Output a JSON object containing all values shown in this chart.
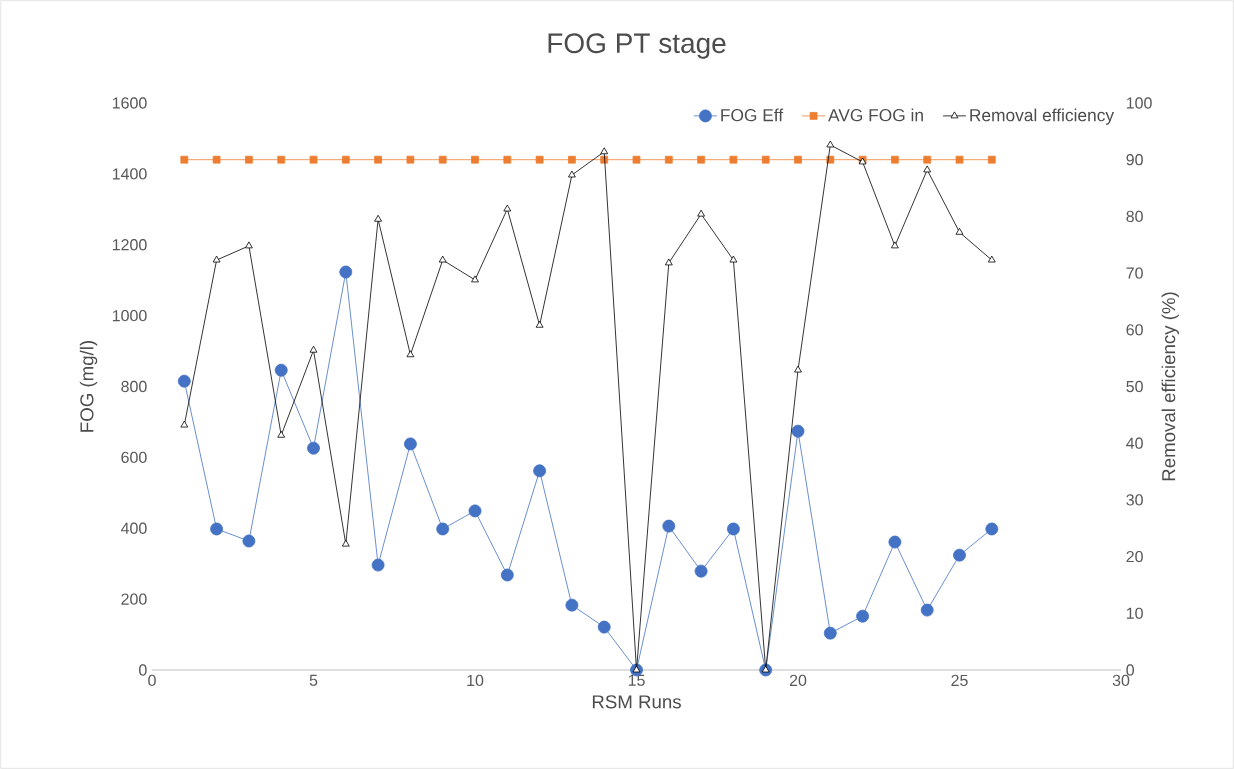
{
  "chart_data": {
    "type": "line",
    "title": "FOG PT stage",
    "xlabel": "RSM Runs",
    "ylabel": "FOG (mg/l)",
    "y2label": "Removal efficiency (%)",
    "x": [
      1,
      2,
      3,
      4,
      5,
      6,
      7,
      8,
      9,
      10,
      11,
      12,
      13,
      14,
      15,
      16,
      17,
      18,
      19,
      20,
      21,
      22,
      23,
      24,
      25,
      26
    ],
    "series": [
      {
        "name": "FOG Eff",
        "color": "#4472c4",
        "marker": "circle",
        "values": [
          815,
          398,
          364,
          846,
          626,
          1123,
          296,
          638,
          398,
          449,
          268,
          562,
          183,
          121,
          0,
          406,
          279,
          398,
          0,
          674,
          104,
          152,
          361,
          169,
          324,
          398
        ]
      },
      {
        "name": "AVG FOG in",
        "color": "#ed7d31",
        "marker": "square",
        "values": [
          1440,
          1440,
          1440,
          1440,
          1440,
          1440,
          1440,
          1440,
          1440,
          1440,
          1440,
          1440,
          1440,
          1440,
          1440,
          1440,
          1440,
          1440,
          1440,
          1440,
          1440,
          1440,
          1440,
          1440,
          1440,
          1440
        ]
      },
      {
        "name": "Removal efficiency",
        "color": "#000000",
        "marker": "triangle",
        "axis": "y2",
        "values": [
          43.2,
          72.3,
          74.8,
          41.4,
          56.4,
          22.2,
          79.5,
          55.6,
          72.3,
          68.8,
          81.3,
          60.8,
          87.3,
          91.4,
          0,
          71.8,
          80.4,
          72.3,
          0,
          52.9,
          92.6,
          89.6,
          74.8,
          88.2,
          77.2,
          72.3
        ]
      }
    ],
    "xlim": [
      0,
      30
    ],
    "xticks": [
      0,
      5,
      10,
      15,
      20,
      25,
      30
    ],
    "ylim": [
      0,
      1600
    ],
    "yticks": [
      0,
      200,
      400,
      600,
      800,
      1000,
      1200,
      1400,
      1600
    ],
    "y2lim": [
      0,
      100
    ],
    "y2ticks": [
      0,
      10,
      20,
      30,
      40,
      50,
      60,
      70,
      80,
      90,
      100
    ],
    "legend": "top right",
    "grid": false
  }
}
